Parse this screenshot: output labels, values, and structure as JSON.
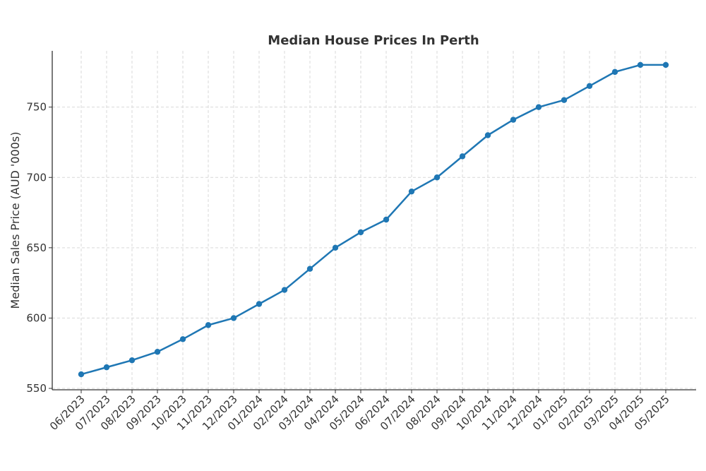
{
  "chart_data": {
    "type": "line",
    "title": "Median House Prices In Perth",
    "xlabel": "",
    "ylabel": "Median Sales Price (AUD '000s)",
    "categories": [
      "06/2023",
      "07/2023",
      "08/2023",
      "09/2023",
      "10/2023",
      "11/2023",
      "12/2023",
      "01/2024",
      "02/2024",
      "03/2024",
      "04/2024",
      "05/2024",
      "06/2024",
      "07/2024",
      "08/2024",
      "09/2024",
      "10/2024",
      "11/2024",
      "12/2024",
      "01/2025",
      "02/2025",
      "03/2025",
      "04/2025",
      "05/2025"
    ],
    "series": [
      {
        "values": [
          560,
          565,
          570,
          576,
          585,
          595,
          600,
          610,
          620,
          635,
          650,
          661,
          670,
          690,
          700,
          715,
          730,
          741,
          750,
          755,
          765,
          775,
          780,
          780
        ],
        "color": "#1f77b4"
      }
    ],
    "ylim": [
      549,
      790
    ],
    "yticks": [
      550,
      600,
      650,
      700,
      750
    ],
    "grid": true,
    "legend": "none"
  }
}
